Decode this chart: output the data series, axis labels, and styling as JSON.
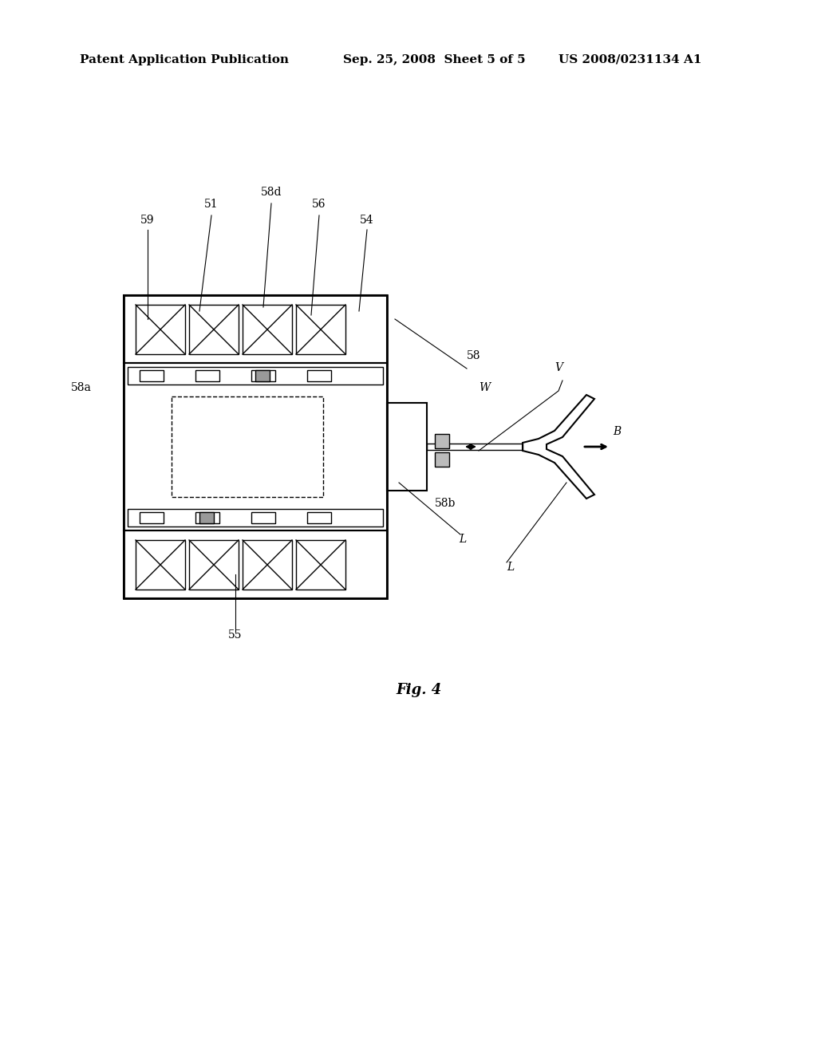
{
  "title_left": "Patent Application Publication",
  "title_mid": "Sep. 25, 2008  Sheet 5 of 5",
  "title_right": "US 2008/0231134 A1",
  "fig_label": "Fig. 4",
  "bg_color": "#ffffff",
  "line_color": "#000000",
  "gray_color": "#888888",
  "light_gray": "#cccccc"
}
